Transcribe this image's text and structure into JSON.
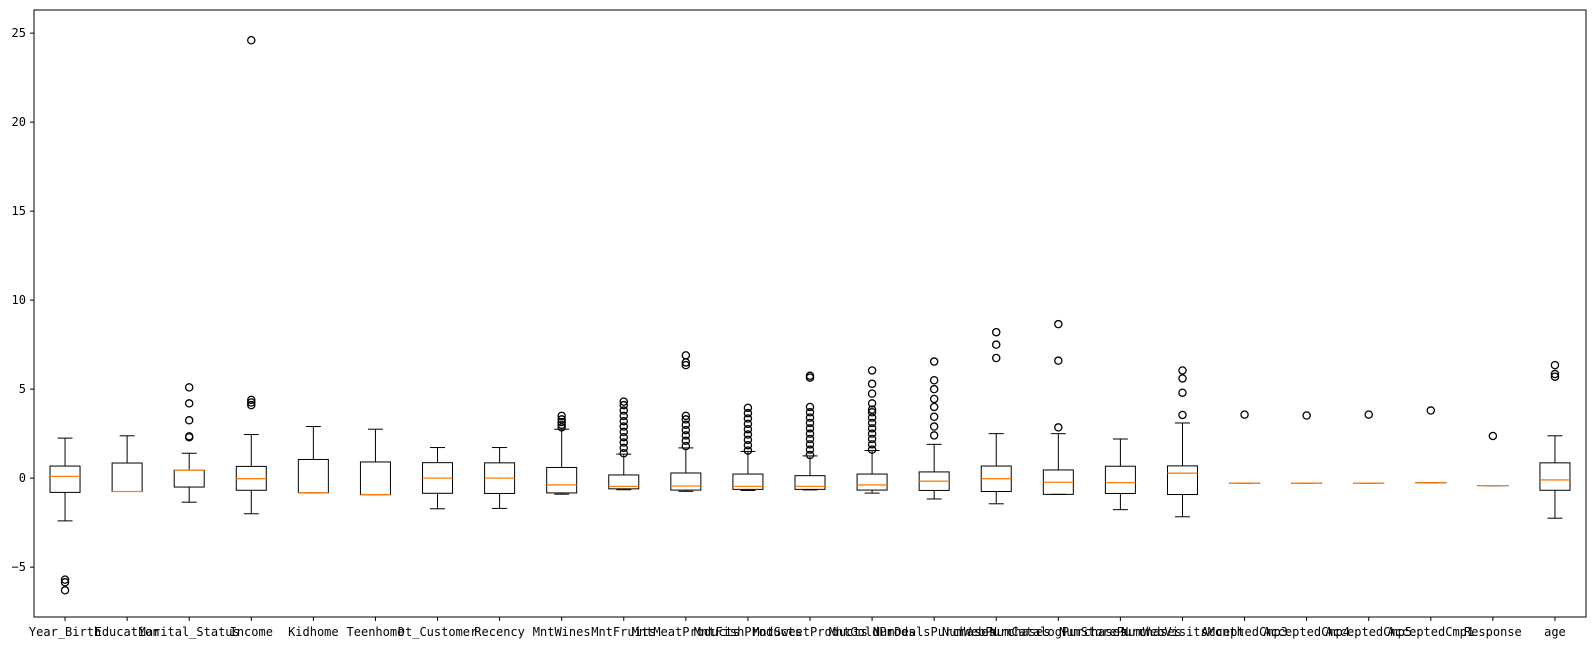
{
  "chart_data": {
    "type": "boxplot",
    "title": "",
    "xlabel": "",
    "ylabel": "",
    "ylim": [
      -7.8,
      26.3
    ],
    "yticks": [
      -5,
      0,
      5,
      10,
      15,
      20,
      25
    ],
    "grid": false,
    "colors": {
      "box": "#000000",
      "median": "#ff7f0e",
      "flier": "#000000",
      "background": "#ffffff"
    },
    "boxes": [
      {
        "label": "Year_Birth",
        "whislo": -2.4,
        "q1": -0.8,
        "med": 0.1,
        "q3": 0.68,
        "whishi": 2.25,
        "fliers": [
          -5.7,
          -5.85,
          -6.3
        ]
      },
      {
        "label": "Education",
        "whislo": -0.75,
        "q1": -0.75,
        "med": -0.75,
        "q3": 0.85,
        "whishi": 2.38,
        "fliers": []
      },
      {
        "label": "Marital_Status",
        "whislo": -1.35,
        "q1": -0.5,
        "med": 0.45,
        "q3": 0.45,
        "whishi": 1.4,
        "fliers": [
          2.3,
          2.35,
          3.25,
          4.2,
          5.1
        ]
      },
      {
        "label": "Income",
        "whislo": -2.0,
        "q1": -0.68,
        "med": -0.03,
        "q3": 0.66,
        "whishi": 2.45,
        "fliers": [
          4.1,
          4.25,
          4.4,
          24.6
        ]
      },
      {
        "label": "Kidhome",
        "whislo": -0.82,
        "q1": -0.82,
        "med": -0.82,
        "q3": 1.05,
        "whishi": 2.9,
        "fliers": []
      },
      {
        "label": "Teenhome",
        "whislo": -0.93,
        "q1": -0.93,
        "med": -0.93,
        "q3": 0.91,
        "whishi": 2.75,
        "fliers": []
      },
      {
        "label": "Dt_Customer",
        "whislo": -1.72,
        "q1": -0.85,
        "med": 0.0,
        "q3": 0.87,
        "whishi": 1.72,
        "fliers": []
      },
      {
        "label": "Recency",
        "whislo": -1.7,
        "q1": -0.86,
        "med": 0.0,
        "q3": 0.86,
        "whishi": 1.72,
        "fliers": []
      },
      {
        "label": "MntWines",
        "whislo": -0.9,
        "q1": -0.83,
        "med": -0.38,
        "q3": 0.6,
        "whishi": 2.75,
        "fliers": [
          2.85,
          3.0,
          3.15,
          3.3,
          3.5
        ]
      },
      {
        "label": "MntFruits",
        "whislo": -0.65,
        "q1": -0.6,
        "med": -0.46,
        "q3": 0.18,
        "whishi": 1.35,
        "fliers": [
          1.4,
          1.7,
          2.0,
          2.3,
          2.6,
          2.9,
          3.2,
          3.5,
          3.8,
          4.1,
          4.3
        ]
      },
      {
        "label": "MntMeatProducts",
        "whislo": -0.74,
        "q1": -0.67,
        "med": -0.44,
        "q3": 0.29,
        "whishi": 1.7,
        "fliers": [
          1.8,
          2.1,
          2.4,
          2.7,
          3.0,
          3.3,
          3.5,
          6.35,
          6.5,
          6.9
        ]
      },
      {
        "label": "MntFishProducts",
        "whislo": -0.69,
        "q1": -0.63,
        "med": -0.46,
        "q3": 0.23,
        "whishi": 1.5,
        "fliers": [
          1.55,
          1.85,
          2.15,
          2.45,
          2.75,
          3.05,
          3.35,
          3.65,
          3.95
        ]
      },
      {
        "label": "MntSweetProducts",
        "whislo": -0.66,
        "q1": -0.63,
        "med": -0.46,
        "q3": 0.14,
        "whishi": 1.25,
        "fliers": [
          1.3,
          1.6,
          1.9,
          2.2,
          2.5,
          2.8,
          3.1,
          3.4,
          3.7,
          4.0,
          5.65,
          5.75
        ]
      },
      {
        "label": "MntGoldProds",
        "whislo": -0.84,
        "q1": -0.67,
        "med": -0.38,
        "q3": 0.23,
        "whishi": 1.55,
        "fliers": [
          1.6,
          1.9,
          2.2,
          2.5,
          2.8,
          3.1,
          3.4,
          3.7,
          3.85,
          4.2,
          4.75,
          5.3,
          6.05
        ]
      },
      {
        "label": "NumDealsPurchases",
        "whislo": -1.17,
        "q1": -0.69,
        "med": -0.17,
        "q3": 0.35,
        "whishi": 1.9,
        "fliers": [
          2.4,
          2.9,
          3.45,
          4.0,
          4.45,
          5.0,
          5.5,
          6.55
        ]
      },
      {
        "label": "NumWebPurchases",
        "whislo": -1.44,
        "q1": -0.75,
        "med": -0.03,
        "q3": 0.68,
        "whishi": 2.5,
        "fliers": [
          6.75,
          7.5,
          8.2
        ]
      },
      {
        "label": "NumCatalogPurchases",
        "whislo": -0.91,
        "q1": -0.91,
        "med": -0.23,
        "q3": 0.46,
        "whishi": 2.5,
        "fliers": [
          2.85,
          6.6,
          8.65
        ]
      },
      {
        "label": "NumStorePurchases",
        "whislo": -1.77,
        "q1": -0.86,
        "med": -0.25,
        "q3": 0.67,
        "whishi": 2.2,
        "fliers": []
      },
      {
        "label": "NumWebVisitsMonth",
        "whislo": -2.17,
        "q1": -0.92,
        "med": 0.28,
        "q3": 0.69,
        "whishi": 3.1,
        "fliers": [
          3.55,
          4.8,
          5.6,
          6.05
        ]
      },
      {
        "label": "AcceptedCmp3",
        "whislo": -0.28,
        "q1": -0.28,
        "med": -0.28,
        "q3": -0.28,
        "whishi": -0.28,
        "fliers": [
          3.57
        ]
      },
      {
        "label": "AcceptedCmp4",
        "whislo": -0.28,
        "q1": -0.28,
        "med": -0.28,
        "q3": -0.28,
        "whishi": -0.28,
        "fliers": [
          3.52
        ]
      },
      {
        "label": "AcceptedCmp5",
        "whislo": -0.28,
        "q1": -0.28,
        "med": -0.28,
        "q3": -0.28,
        "whishi": -0.28,
        "fliers": [
          3.57
        ]
      },
      {
        "label": "AcceptedCmp1",
        "whislo": -0.26,
        "q1": -0.26,
        "med": -0.26,
        "q3": -0.26,
        "whishi": -0.26,
        "fliers": [
          3.8
        ]
      },
      {
        "label": "Response",
        "whislo": -0.42,
        "q1": -0.42,
        "med": -0.42,
        "q3": -0.42,
        "whishi": -0.42,
        "fliers": [
          2.37
        ]
      },
      {
        "label": "age",
        "whislo": -2.25,
        "q1": -0.68,
        "med": -0.1,
        "q3": 0.86,
        "whishi": 2.38,
        "fliers": [
          5.7,
          5.85,
          6.35
        ]
      }
    ]
  }
}
